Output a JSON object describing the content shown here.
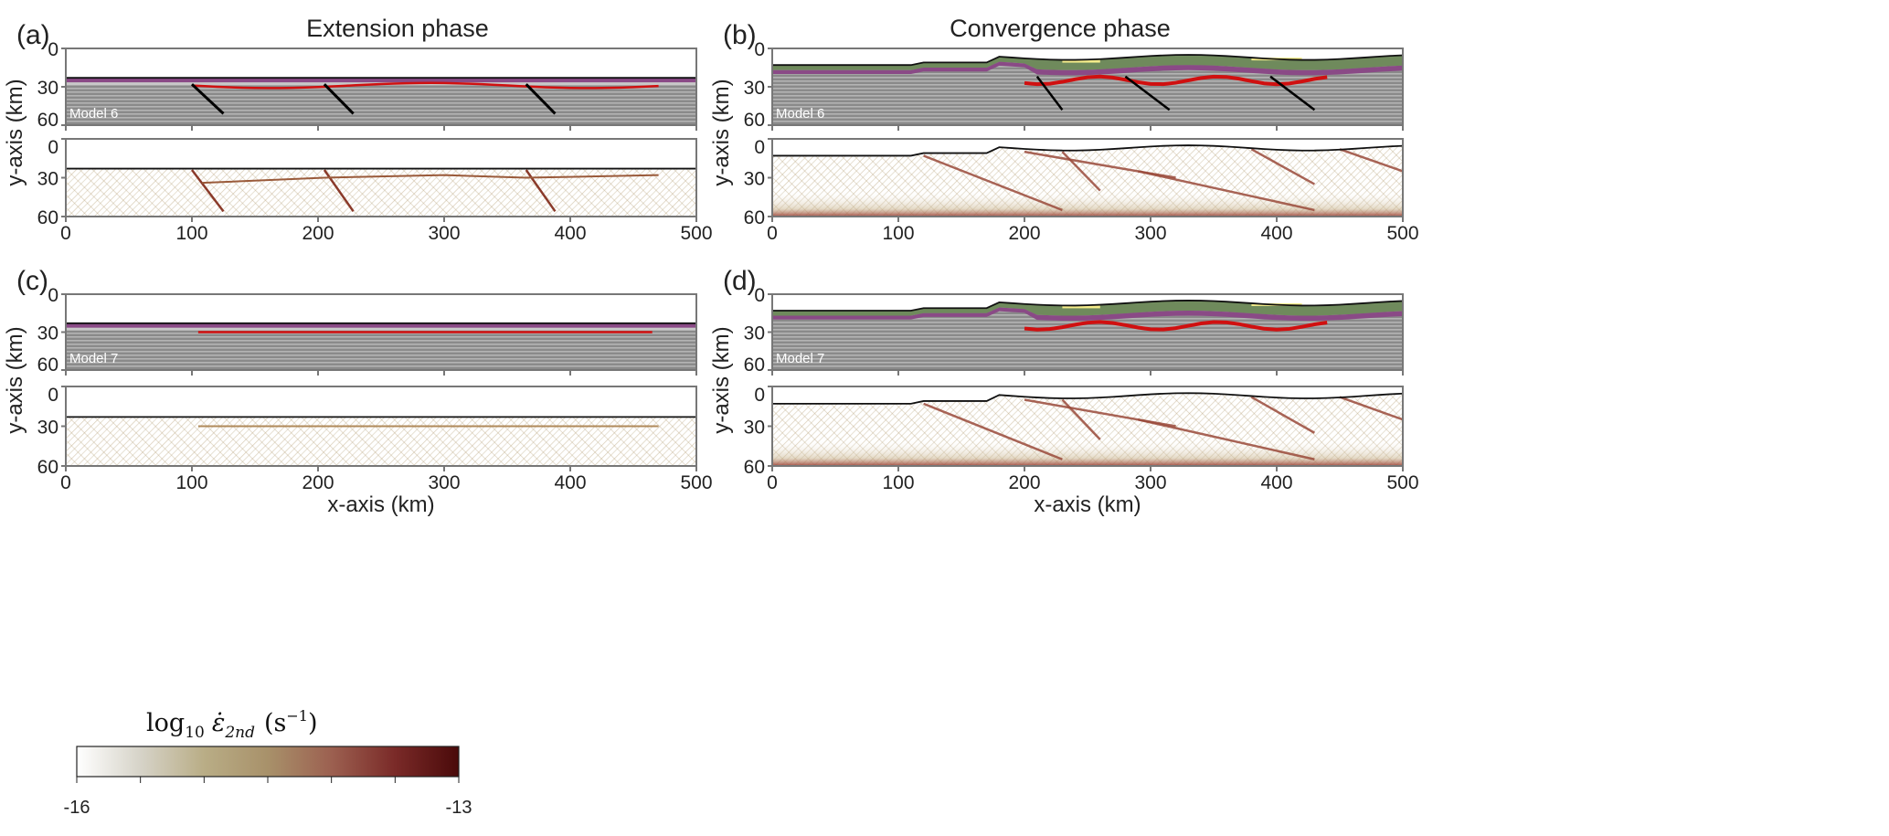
{
  "titles": {
    "extension": "Extension phase",
    "convergence": "Convergence phase"
  },
  "panels": [
    {
      "label": "(a)",
      "model": "Model 6",
      "phase": "extension"
    },
    {
      "label": "(b)",
      "model": "Model 6",
      "phase": "convergence"
    },
    {
      "label": "(c)",
      "model": "Model 7",
      "phase": "extension"
    },
    {
      "label": "(d)",
      "model": "Model 7",
      "phase": "convergence"
    }
  ],
  "axes": {
    "y_label": "y-axis (km)",
    "x_label": "x-axis (km)",
    "y_ticks": [
      "0",
      "30",
      "60"
    ],
    "x_ticks": [
      "0",
      "100",
      "200",
      "300",
      "400",
      "500"
    ],
    "x_range_km": [
      0,
      500
    ],
    "y_range_km": [
      0,
      60
    ]
  },
  "colorbar": {
    "title": "log10 ε̇2nd (s⁻¹)",
    "title_parts": {
      "base": "log",
      "sub": "10",
      "eps": "ε̇",
      "eps_sub": "2nd",
      "unit": "(s",
      "unit_exp": "−1",
      "close": ")"
    },
    "min_label": "-16",
    "max_label": "-13",
    "colors": [
      "#ffffff",
      "#d6d3c8",
      "#b9ad86",
      "#a8916a",
      "#9c6050",
      "#7a2a28",
      "#4a0a0a"
    ]
  },
  "colors": {
    "purple": "#8a4a86",
    "red": "#d01010",
    "green": "#6f8a5c",
    "yellow": "#f4ec8a",
    "gray": "#8c8c8c"
  }
}
